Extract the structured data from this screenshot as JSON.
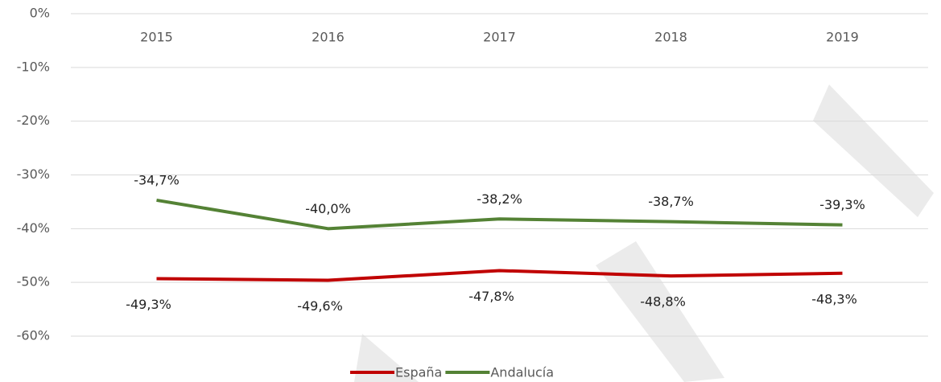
{
  "chart_data": {
    "type": "line",
    "categories": [
      "2015",
      "2016",
      "2017",
      "2018",
      "2019"
    ],
    "series": [
      {
        "name": "España",
        "color": "#c00000",
        "values": [
          -49.3,
          -49.6,
          -47.8,
          -48.8,
          -48.3
        ],
        "value_labels": [
          "-49,3%",
          "-49,6%",
          "-47,8%",
          "-48,8%",
          "-48,3%"
        ]
      },
      {
        "name": "Andalucía",
        "color": "#548235",
        "values": [
          -34.7,
          -40.0,
          -38.2,
          -38.7,
          -39.3
        ],
        "value_labels": [
          "-34,7%",
          "-40,0%",
          "-38,2%",
          "-38,7%",
          "-39,3%"
        ]
      }
    ],
    "ylim": [
      -60,
      0
    ],
    "yticks": [
      {
        "value": 0,
        "label": "0%"
      },
      {
        "value": -10,
        "label": "-10%"
      },
      {
        "value": -20,
        "label": "-20%"
      },
      {
        "value": -30,
        "label": "-30%"
      },
      {
        "value": -40,
        "label": "-40%"
      },
      {
        "value": -50,
        "label": "-50%"
      },
      {
        "value": -60,
        "label": "-60%"
      }
    ],
    "grid": true,
    "legend": "bottom"
  }
}
